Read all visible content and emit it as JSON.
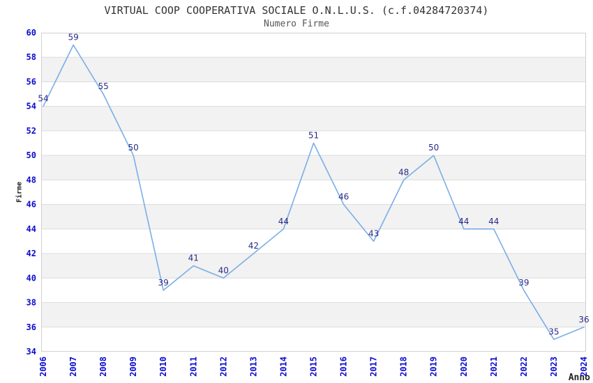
{
  "chart_data": {
    "type": "line",
    "title": "VIRTUAL COOP COOPERATIVA SOCIALE O.N.L.U.S. (c.f.04284720374)",
    "subtitle": "Numero Firme",
    "xlabel": "Anno",
    "ylabel": "Firme",
    "categories": [
      "2006",
      "2007",
      "2008",
      "2009",
      "2010",
      "2011",
      "2012",
      "2013",
      "2014",
      "2015",
      "2016",
      "2017",
      "2018",
      "2019",
      "2020",
      "2021",
      "2022",
      "2023",
      "2024"
    ],
    "values": [
      54,
      59,
      55,
      50,
      39,
      41,
      40,
      42,
      44,
      51,
      46,
      43,
      48,
      50,
      44,
      44,
      39,
      35,
      36
    ],
    "ylim": [
      34,
      60
    ],
    "ytick_step": 2,
    "grid": true,
    "band_fill": "alternating",
    "legend_position": "none",
    "colors": {
      "line": "#7aaee6",
      "data_label": "#2a2a85",
      "tick_label": "#0b0bcf",
      "title": "#333333",
      "subtitle": "#555555",
      "axis_title": "#222222",
      "band": "#f2f2f2",
      "gridline": "#dcdcdc",
      "border": "#d0d0d0",
      "background": "#ffffff"
    }
  }
}
